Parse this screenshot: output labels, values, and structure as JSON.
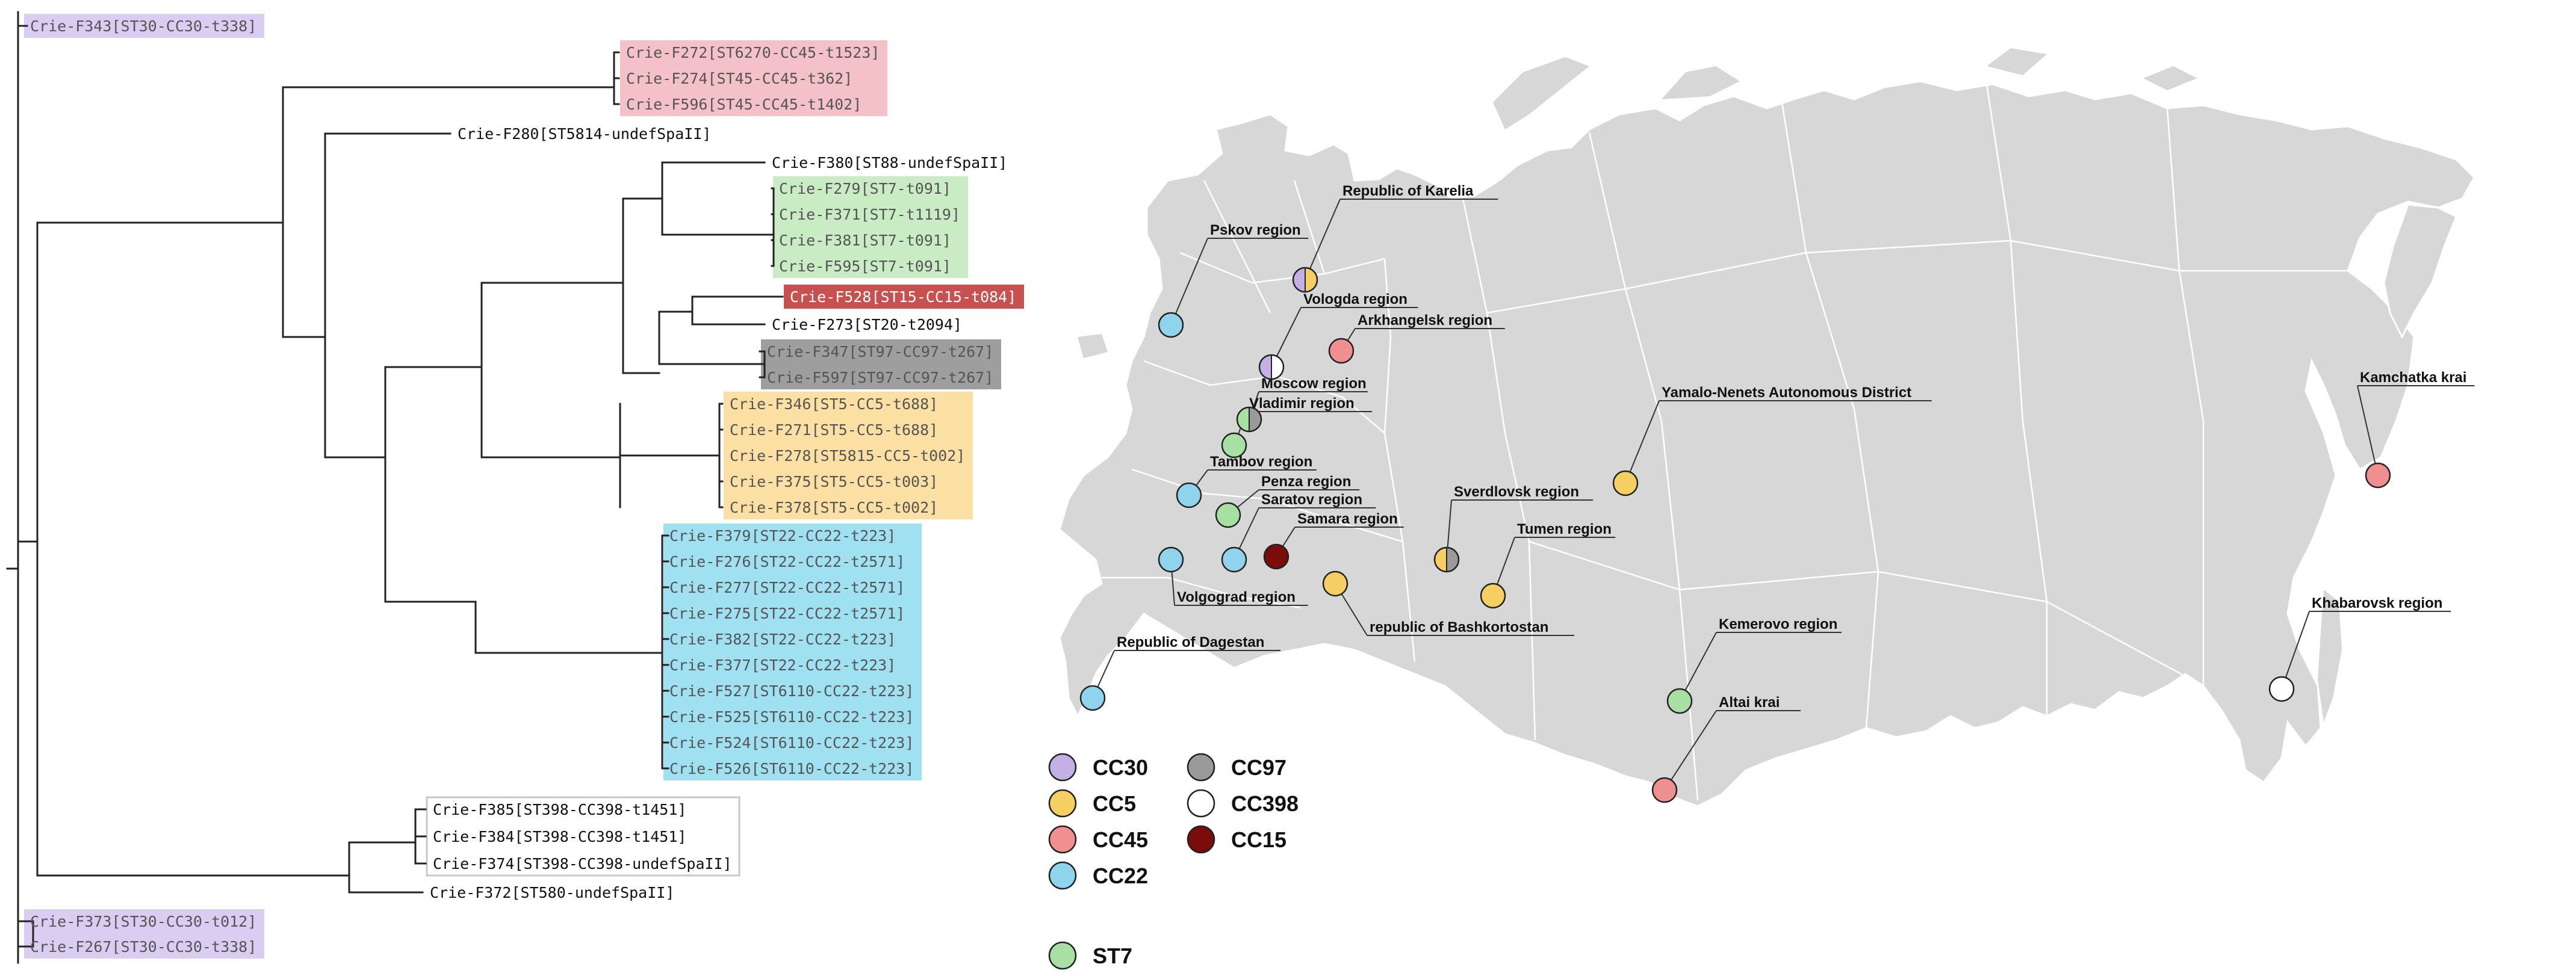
{
  "colors": {
    "CC30": "#c5b0e6",
    "CC5": "#f5cf62",
    "CC45": "#ef8f8f",
    "CC22": "#8fd4ec",
    "CC97": "#9a9a9a",
    "CC398": "#ffffff",
    "CC15": "#7a0c0c",
    "ST7": "#a7e0a2",
    "box_CC30": "#d9cdf1",
    "box_CC45": "#f5c1c8",
    "box_ST7": "#c9ecc5",
    "box_CC15": "#c8504f",
    "box_CC97": "#9e9e9e",
    "box_CC5": "#fbdfa3",
    "box_CC22": "#9fe0f1",
    "map_land": "#d7d7d7"
  },
  "tree": {
    "tips": [
      {
        "id": "t343",
        "label": "Crie-F343[ST30-CC30-t338]",
        "group": "CC30"
      },
      {
        "id": "t272",
        "label": "Crie-F272[ST6270-CC45-t1523]",
        "group": "CC45"
      },
      {
        "id": "t274",
        "label": "Crie-F274[ST45-CC45-t362]",
        "group": "CC45"
      },
      {
        "id": "t596",
        "label": "Crie-F596[ST45-CC45-t1402]",
        "group": "CC45"
      },
      {
        "id": "t280",
        "label": "Crie-F280[ST5814-undefSpaII]",
        "group": "none"
      },
      {
        "id": "t380",
        "label": "Crie-F380[ST88-undefSpaII]",
        "group": "none"
      },
      {
        "id": "t279",
        "label": "Crie-F279[ST7-t091]",
        "group": "ST7"
      },
      {
        "id": "t371",
        "label": "Crie-F371[ST7-t1119]",
        "group": "ST7"
      },
      {
        "id": "t381",
        "label": "Crie-F381[ST7-t091]",
        "group": "ST7"
      },
      {
        "id": "t595",
        "label": "Crie-F595[ST7-t091]",
        "group": "ST7"
      },
      {
        "id": "t528",
        "label": "Crie-F528[ST15-CC15-t084]",
        "group": "CC15"
      },
      {
        "id": "t273",
        "label": "Crie-F273[ST20-t2094]",
        "group": "none"
      },
      {
        "id": "t347",
        "label": "Crie-F347[ST97-CC97-t267]",
        "group": "CC97"
      },
      {
        "id": "t597",
        "label": "Crie-F597[ST97-CC97-t267]",
        "group": "CC97"
      },
      {
        "id": "t346",
        "label": "Crie-F346[ST5-CC5-t688]",
        "group": "CC5"
      },
      {
        "id": "t271",
        "label": "Crie-F271[ST5-CC5-t688]",
        "group": "CC5"
      },
      {
        "id": "t278",
        "label": "Crie-F278[ST5815-CC5-t002]",
        "group": "CC5"
      },
      {
        "id": "t375",
        "label": "Crie-F375[ST5-CC5-t003]",
        "group": "CC5"
      },
      {
        "id": "t378",
        "label": "Crie-F378[ST5-CC5-t002]",
        "group": "CC5"
      },
      {
        "id": "t379",
        "label": "Crie-F379[ST22-CC22-t223]",
        "group": "CC22"
      },
      {
        "id": "t276",
        "label": "Crie-F276[ST22-CC22-t2571]",
        "group": "CC22"
      },
      {
        "id": "t277",
        "label": "Crie-F277[ST22-CC22-t2571]",
        "group": "CC22"
      },
      {
        "id": "t275",
        "label": "Crie-F275[ST22-CC22-t2571]",
        "group": "CC22"
      },
      {
        "id": "t382",
        "label": "Crie-F382[ST22-CC22-t223]",
        "group": "CC22"
      },
      {
        "id": "t377",
        "label": "Crie-F377[ST22-CC22-t223]",
        "group": "CC22"
      },
      {
        "id": "t527",
        "label": "Crie-F527[ST6110-CC22-t223]",
        "group": "CC22"
      },
      {
        "id": "t525",
        "label": "Crie-F525[ST6110-CC22-t223]",
        "group": "CC22"
      },
      {
        "id": "t524",
        "label": "Crie-F524[ST6110-CC22-t223]",
        "group": "CC22"
      },
      {
        "id": "t526",
        "label": "Crie-F526[ST6110-CC22-t223]",
        "group": "CC22"
      },
      {
        "id": "t385",
        "label": "Crie-F385[ST398-CC398-t1451]",
        "group": "CC398"
      },
      {
        "id": "t384",
        "label": "Crie-F384[ST398-CC398-t1451]",
        "group": "CC398"
      },
      {
        "id": "t374",
        "label": "Crie-F374[ST398-CC398-undefSpaII]",
        "group": "CC398"
      },
      {
        "id": "t372",
        "label": "Crie-F372[ST580-undefSpaII]",
        "group": "none"
      },
      {
        "id": "t373",
        "label": "Crie-F373[ST30-CC30-t012]",
        "group": "CC30"
      },
      {
        "id": "t267",
        "label": "Crie-F267[ST30-CC30-t338]",
        "group": "CC30"
      }
    ]
  },
  "map": {
    "regions": [
      {
        "id": "pskov",
        "label": "Pskov region",
        "groups": [
          "CC22"
        ]
      },
      {
        "id": "karelia",
        "label": "Republic of Karelia",
        "groups": [
          "CC30",
          "CC5"
        ]
      },
      {
        "id": "vologda",
        "label": "Vologda region",
        "groups": [
          "CC30",
          "CC398"
        ]
      },
      {
        "id": "arkhangelsk",
        "label": "Arkhangelsk region",
        "groups": [
          "CC45"
        ]
      },
      {
        "id": "moscow",
        "label": "Moscow region",
        "groups": [
          "ST7",
          "CC97"
        ]
      },
      {
        "id": "vladimir",
        "label": "Vladimir region",
        "groups": [
          "ST7"
        ]
      },
      {
        "id": "tambov",
        "label": "Tambov region",
        "groups": [
          "CC22"
        ]
      },
      {
        "id": "penza",
        "label": "Penza region",
        "groups": [
          "ST7"
        ]
      },
      {
        "id": "saratov",
        "label": "Saratov region",
        "groups": [
          "CC22"
        ]
      },
      {
        "id": "samara",
        "label": "Samara region",
        "groups": [
          "CC15"
        ]
      },
      {
        "id": "volgograd",
        "label": "Volgograd region",
        "groups": [
          "CC22"
        ]
      },
      {
        "id": "bashkortostan",
        "label": "republic of Bashkortostan",
        "groups": [
          "CC5"
        ]
      },
      {
        "id": "dagestan",
        "label": "Republic of Dagestan",
        "groups": [
          "CC22"
        ]
      },
      {
        "id": "sverdlovsk",
        "label": "Sverdlovsk region",
        "groups": [
          "CC5",
          "CC97"
        ]
      },
      {
        "id": "tumen",
        "label": "Tumen region",
        "groups": [
          "CC5"
        ]
      },
      {
        "id": "yamalo",
        "label": "Yamalo-Nenets Autonomous District",
        "groups": [
          "CC5"
        ]
      },
      {
        "id": "kemerovo",
        "label": "Kemerovo region",
        "groups": [
          "ST7"
        ]
      },
      {
        "id": "altai",
        "label": "Altai krai",
        "groups": [
          "CC45"
        ]
      },
      {
        "id": "kamchatka",
        "label": "Kamchatka krai",
        "groups": [
          "CC45"
        ]
      },
      {
        "id": "khabarovsk",
        "label": "Khabarovsk region",
        "groups": [
          "CC398"
        ]
      }
    ]
  },
  "legend": {
    "items": [
      {
        "key": "CC30",
        "label": "CC30"
      },
      {
        "key": "CC5",
        "label": "CC5"
      },
      {
        "key": "CC45",
        "label": "CC45"
      },
      {
        "key": "CC22",
        "label": "CC22"
      },
      {
        "key": "CC97",
        "label": "CC97"
      },
      {
        "key": "CC398",
        "label": "CC398"
      },
      {
        "key": "CC15",
        "label": "CC15"
      },
      {
        "key": "ST7",
        "label": "ST7"
      }
    ]
  }
}
